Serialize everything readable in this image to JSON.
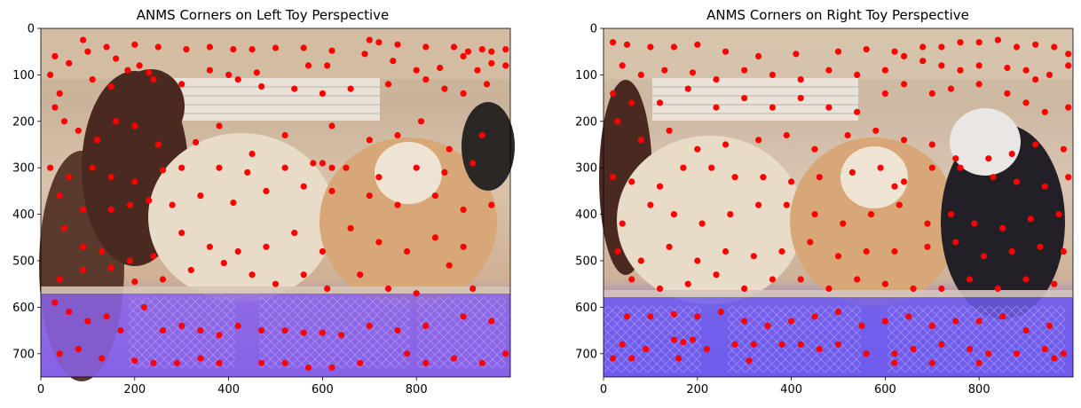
{
  "chart_data": [
    {
      "type": "scatter",
      "title": "ANMS Corners on Left Toy Perspective",
      "image_width": 1000,
      "image_height": 750,
      "xlim": [
        0,
        1000
      ],
      "ylim": [
        750,
        0
      ],
      "x_ticks": [
        0,
        200,
        400,
        600,
        800
      ],
      "y_ticks": [
        0,
        100,
        200,
        300,
        400,
        500,
        600,
        700
      ],
      "marker_color": "#ff0000",
      "points": [
        [
          90,
          25
        ],
        [
          140,
          40
        ],
        [
          200,
          35
        ],
        [
          250,
          40
        ],
        [
          310,
          45
        ],
        [
          360,
          40
        ],
        [
          410,
          45
        ],
        [
          450,
          45
        ],
        [
          500,
          42
        ],
        [
          560,
          42
        ],
        [
          620,
          48
        ],
        [
          700,
          25
        ],
        [
          720,
          30
        ],
        [
          760,
          35
        ],
        [
          820,
          40
        ],
        [
          880,
          40
        ],
        [
          910,
          50
        ],
        [
          940,
          45
        ],
        [
          960,
          50
        ],
        [
          990,
          45
        ],
        [
          30,
          60
        ],
        [
          60,
          75
        ],
        [
          100,
          50
        ],
        [
          160,
          65
        ],
        [
          210,
          80
        ],
        [
          230,
          95
        ],
        [
          360,
          90
        ],
        [
          400,
          100
        ],
        [
          460,
          95
        ],
        [
          570,
          80
        ],
        [
          610,
          80
        ],
        [
          690,
          55
        ],
        [
          750,
          70
        ],
        [
          800,
          90
        ],
        [
          850,
          85
        ],
        [
          900,
          60
        ],
        [
          930,
          90
        ],
        [
          960,
          75
        ],
        [
          990,
          80
        ],
        [
          20,
          100
        ],
        [
          40,
          140
        ],
        [
          110,
          110
        ],
        [
          150,
          125
        ],
        [
          185,
          90
        ],
        [
          240,
          110
        ],
        [
          300,
          120
        ],
        [
          420,
          110
        ],
        [
          470,
          125
        ],
        [
          540,
          130
        ],
        [
          600,
          140
        ],
        [
          660,
          130
        ],
        [
          740,
          120
        ],
        [
          820,
          110
        ],
        [
          860,
          130
        ],
        [
          900,
          140
        ],
        [
          950,
          120
        ],
        [
          30,
          170
        ],
        [
          50,
          200
        ],
        [
          80,
          220
        ],
        [
          120,
          240
        ],
        [
          160,
          200
        ],
        [
          200,
          210
        ],
        [
          250,
          250
        ],
        [
          330,
          245
        ],
        [
          380,
          210
        ],
        [
          450,
          270
        ],
        [
          520,
          230
        ],
        [
          620,
          210
        ],
        [
          700,
          240
        ],
        [
          760,
          230
        ],
        [
          810,
          200
        ],
        [
          870,
          260
        ],
        [
          940,
          230
        ],
        [
          20,
          300
        ],
        [
          60,
          320
        ],
        [
          110,
          300
        ],
        [
          150,
          320
        ],
        [
          200,
          330
        ],
        [
          260,
          305
        ],
        [
          300,
          300
        ],
        [
          380,
          300
        ],
        [
          440,
          310
        ],
        [
          520,
          300
        ],
        [
          580,
          290
        ],
        [
          600,
          290
        ],
        [
          620,
          300
        ],
        [
          650,
          300
        ],
        [
          720,
          320
        ],
        [
          800,
          300
        ],
        [
          860,
          310
        ],
        [
          920,
          290
        ],
        [
          40,
          360
        ],
        [
          90,
          390
        ],
        [
          150,
          390
        ],
        [
          190,
          380
        ],
        [
          230,
          370
        ],
        [
          280,
          380
        ],
        [
          340,
          360
        ],
        [
          410,
          375
        ],
        [
          480,
          350
        ],
        [
          560,
          340
        ],
        [
          620,
          350
        ],
        [
          700,
          360
        ],
        [
          760,
          380
        ],
        [
          840,
          360
        ],
        [
          900,
          390
        ],
        [
          960,
          380
        ],
        [
          50,
          430
        ],
        [
          90,
          470
        ],
        [
          130,
          480
        ],
        [
          190,
          500
        ],
        [
          240,
          490
        ],
        [
          300,
          440
        ],
        [
          360,
          470
        ],
        [
          420,
          480
        ],
        [
          480,
          470
        ],
        [
          540,
          440
        ],
        [
          600,
          480
        ],
        [
          660,
          430
        ],
        [
          720,
          460
        ],
        [
          780,
          480
        ],
        [
          840,
          450
        ],
        [
          900,
          470
        ],
        [
          40,
          540
        ],
        [
          90,
          520
        ],
        [
          150,
          515
        ],
        [
          200,
          545
        ],
        [
          260,
          540
        ],
        [
          320,
          520
        ],
        [
          390,
          505
        ],
        [
          450,
          530
        ],
        [
          500,
          550
        ],
        [
          560,
          530
        ],
        [
          610,
          560
        ],
        [
          680,
          530
        ],
        [
          740,
          560
        ],
        [
          800,
          570
        ],
        [
          870,
          510
        ],
        [
          920,
          560
        ],
        [
          30,
          590
        ],
        [
          60,
          610
        ],
        [
          100,
          630
        ],
        [
          140,
          620
        ],
        [
          170,
          650
        ],
        [
          220,
          600
        ],
        [
          260,
          650
        ],
        [
          300,
          640
        ],
        [
          340,
          650
        ],
        [
          380,
          660
        ],
        [
          420,
          640
        ],
        [
          470,
          650
        ],
        [
          520,
          650
        ],
        [
          560,
          655
        ],
        [
          600,
          655
        ],
        [
          640,
          660
        ],
        [
          700,
          640
        ],
        [
          760,
          650
        ],
        [
          820,
          640
        ],
        [
          900,
          620
        ],
        [
          960,
          630
        ],
        [
          40,
          700
        ],
        [
          80,
          690
        ],
        [
          130,
          710
        ],
        [
          200,
          715
        ],
        [
          240,
          720
        ],
        [
          290,
          720
        ],
        [
          340,
          710
        ],
        [
          380,
          720
        ],
        [
          470,
          720
        ],
        [
          520,
          720
        ],
        [
          570,
          730
        ],
        [
          620,
          730
        ],
        [
          680,
          720
        ],
        [
          780,
          700
        ],
        [
          820,
          720
        ],
        [
          880,
          710
        ],
        [
          940,
          720
        ],
        [
          990,
          700
        ]
      ]
    },
    {
      "type": "scatter",
      "title": "ANMS Corners on Right Toy Perspective",
      "image_width": 1000,
      "image_height": 750,
      "xlim": [
        0,
        1000
      ],
      "ylim": [
        750,
        0
      ],
      "x_ticks": [
        0,
        200,
        400,
        600,
        800
      ],
      "y_ticks": [
        0,
        100,
        200,
        300,
        400,
        500,
        600,
        700
      ],
      "marker_color": "#ff0000",
      "points": [
        [
          20,
          30
        ],
        [
          50,
          35
        ],
        [
          100,
          40
        ],
        [
          150,
          40
        ],
        [
          200,
          35
        ],
        [
          260,
          50
        ],
        [
          330,
          60
        ],
        [
          410,
          55
        ],
        [
          500,
          50
        ],
        [
          560,
          45
        ],
        [
          620,
          50
        ],
        [
          680,
          40
        ],
        [
          720,
          40
        ],
        [
          760,
          30
        ],
        [
          800,
          30
        ],
        [
          840,
          25
        ],
        [
          880,
          40
        ],
        [
          920,
          35
        ],
        [
          960,
          40
        ],
        [
          990,
          55
        ],
        [
          40,
          80
        ],
        [
          80,
          100
        ],
        [
          130,
          90
        ],
        [
          190,
          95
        ],
        [
          240,
          110
        ],
        [
          300,
          90
        ],
        [
          360,
          100
        ],
        [
          420,
          110
        ],
        [
          480,
          90
        ],
        [
          540,
          100
        ],
        [
          600,
          90
        ],
        [
          640,
          60
        ],
        [
          680,
          70
        ],
        [
          720,
          80
        ],
        [
          760,
          90
        ],
        [
          800,
          80
        ],
        [
          860,
          85
        ],
        [
          900,
          90
        ],
        [
          920,
          110
        ],
        [
          950,
          100
        ],
        [
          990,
          80
        ],
        [
          20,
          140
        ],
        [
          60,
          160
        ],
        [
          120,
          160
        ],
        [
          180,
          130
        ],
        [
          240,
          170
        ],
        [
          300,
          150
        ],
        [
          360,
          170
        ],
        [
          420,
          150
        ],
        [
          480,
          170
        ],
        [
          540,
          180
        ],
        [
          600,
          140
        ],
        [
          640,
          120
        ],
        [
          700,
          140
        ],
        [
          740,
          130
        ],
        [
          800,
          120
        ],
        [
          860,
          140
        ],
        [
          900,
          160
        ],
        [
          940,
          180
        ],
        [
          990,
          170
        ],
        [
          30,
          200
        ],
        [
          80,
          240
        ],
        [
          140,
          220
        ],
        [
          200,
          260
        ],
        [
          260,
          250
        ],
        [
          330,
          240
        ],
        [
          390,
          230
        ],
        [
          450,
          260
        ],
        [
          520,
          230
        ],
        [
          580,
          220
        ],
        [
          640,
          240
        ],
        [
          700,
          250
        ],
        [
          750,
          280
        ],
        [
          820,
          280
        ],
        [
          870,
          270
        ],
        [
          920,
          250
        ],
        [
          980,
          260
        ],
        [
          20,
          320
        ],
        [
          60,
          330
        ],
        [
          120,
          340
        ],
        [
          170,
          300
        ],
        [
          230,
          300
        ],
        [
          280,
          320
        ],
        [
          340,
          320
        ],
        [
          400,
          330
        ],
        [
          460,
          320
        ],
        [
          530,
          310
        ],
        [
          590,
          300
        ],
        [
          620,
          340
        ],
        [
          640,
          330
        ],
        [
          700,
          300
        ],
        [
          760,
          300
        ],
        [
          830,
          320
        ],
        [
          880,
          330
        ],
        [
          940,
          340
        ],
        [
          990,
          320
        ],
        [
          40,
          420
        ],
        [
          100,
          380
        ],
        [
          150,
          400
        ],
        [
          210,
          420
        ],
        [
          270,
          400
        ],
        [
          330,
          380
        ],
        [
          390,
          380
        ],
        [
          450,
          400
        ],
        [
          510,
          420
        ],
        [
          570,
          400
        ],
        [
          630,
          380
        ],
        [
          690,
          420
        ],
        [
          740,
          400
        ],
        [
          790,
          420
        ],
        [
          850,
          430
        ],
        [
          910,
          410
        ],
        [
          970,
          400
        ],
        [
          30,
          480
        ],
        [
          80,
          500
        ],
        [
          140,
          470
        ],
        [
          200,
          500
        ],
        [
          260,
          480
        ],
        [
          320,
          490
        ],
        [
          380,
          480
        ],
        [
          440,
          460
        ],
        [
          500,
          490
        ],
        [
          560,
          480
        ],
        [
          620,
          480
        ],
        [
          690,
          470
        ],
        [
          750,
          460
        ],
        [
          810,
          490
        ],
        [
          870,
          480
        ],
        [
          930,
          470
        ],
        [
          980,
          480
        ],
        [
          60,
          540
        ],
        [
          120,
          560
        ],
        [
          180,
          550
        ],
        [
          240,
          530
        ],
        [
          300,
          560
        ],
        [
          360,
          540
        ],
        [
          420,
          540
        ],
        [
          480,
          560
        ],
        [
          540,
          540
        ],
        [
          600,
          550
        ],
        [
          660,
          560
        ],
        [
          720,
          560
        ],
        [
          780,
          540
        ],
        [
          840,
          560
        ],
        [
          900,
          540
        ],
        [
          960,
          550
        ],
        [
          50,
          620
        ],
        [
          100,
          620
        ],
        [
          150,
          615
        ],
        [
          200,
          620
        ],
        [
          250,
          610
        ],
        [
          300,
          630
        ],
        [
          350,
          640
        ],
        [
          400,
          630
        ],
        [
          450,
          620
        ],
        [
          500,
          610
        ],
        [
          550,
          640
        ],
        [
          600,
          630
        ],
        [
          650,
          620
        ],
        [
          700,
          640
        ],
        [
          750,
          630
        ],
        [
          800,
          630
        ],
        [
          850,
          620
        ],
        [
          900,
          650
        ],
        [
          950,
          640
        ],
        [
          40,
          680
        ],
        [
          90,
          690
        ],
        [
          150,
          670
        ],
        [
          170,
          675
        ],
        [
          190,
          670
        ],
        [
          220,
          690
        ],
        [
          280,
          680
        ],
        [
          320,
          680
        ],
        [
          380,
          680
        ],
        [
          420,
          680
        ],
        [
          460,
          690
        ],
        [
          500,
          680
        ],
        [
          560,
          700
        ],
        [
          620,
          700
        ],
        [
          660,
          690
        ],
        [
          720,
          680
        ],
        [
          780,
          690
        ],
        [
          820,
          700
        ],
        [
          880,
          700
        ],
        [
          940,
          690
        ],
        [
          980,
          700
        ],
        [
          20,
          710
        ],
        [
          60,
          710
        ],
        [
          160,
          710
        ],
        [
          310,
          715
        ],
        [
          620,
          720
        ],
        [
          700,
          720
        ],
        [
          800,
          720
        ],
        [
          960,
          710
        ]
      ]
    }
  ]
}
